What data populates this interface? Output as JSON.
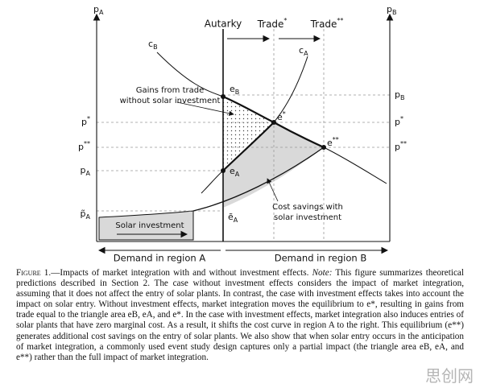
{
  "axes": {
    "left_label": {
      "base": "p",
      "sub": "A"
    },
    "right_label": {
      "base": "p",
      "sub": "B"
    }
  },
  "regimes": [
    "Autarky",
    {
      "base": "Trade",
      "sup": "*"
    },
    {
      "base": "Trade",
      "sup": "**"
    }
  ],
  "price_labels_left": [
    {
      "base": "p",
      "sup": "*"
    },
    {
      "base": "p",
      "sup": "**"
    },
    {
      "base": "p",
      "sub": "A"
    },
    {
      "base": "p̃",
      "sub": "A"
    }
  ],
  "price_labels_right": [
    {
      "base": "p",
      "sub": "B"
    },
    {
      "base": "p",
      "sup": "*"
    },
    {
      "base": "p",
      "sup": "**"
    }
  ],
  "curves": [
    {
      "base": "c",
      "sub": "B"
    },
    {
      "base": "c",
      "sub": "A"
    }
  ],
  "points": [
    {
      "base": "e",
      "sub": "B"
    },
    {
      "base": "e",
      "sup": "*"
    },
    {
      "base": "e",
      "sup": "**"
    },
    {
      "base": "e",
      "sub": "A"
    },
    {
      "base": "ẽ",
      "sub": "A"
    }
  ],
  "annotations": {
    "gains": [
      "Gains from trade",
      "without solar investment"
    ],
    "savings": [
      "Cost savings with",
      "solar investment"
    ],
    "solar": "Solar investment"
  },
  "demand": [
    "Demand in region A",
    "Demand in region B"
  ],
  "caption": {
    "label": "Figure 1.",
    "title": "—Impacts of market integration with and without investment effects.",
    "note_label": "Note:",
    "text": "This figure summarizes theoretical predictions described in Section 2. The case without investment effects considers the impact of market integration, assuming that it does not affect the entry of solar plants. In contrast, the case with investment effects takes into account the impact on solar entry. Without investment effects, market integration moves the equilibrium to e*, resulting in gains from trade equal to the triangle area eB, eA, and e*. In the case with investment effects, market integration also induces entries of solar plants that have zero marginal cost. As a result, it shifts the cost curve in region A to the right. This equilibrium (e**) generates additional cost savings on the entry of solar plants. We also show that when solar entry occurs in the anticipation of market integration, a commonly used event study design captures only a partial impact (the triangle area eB, eA, and e**) rather than the full impact of market integration."
  },
  "watermark": "思创网"
}
